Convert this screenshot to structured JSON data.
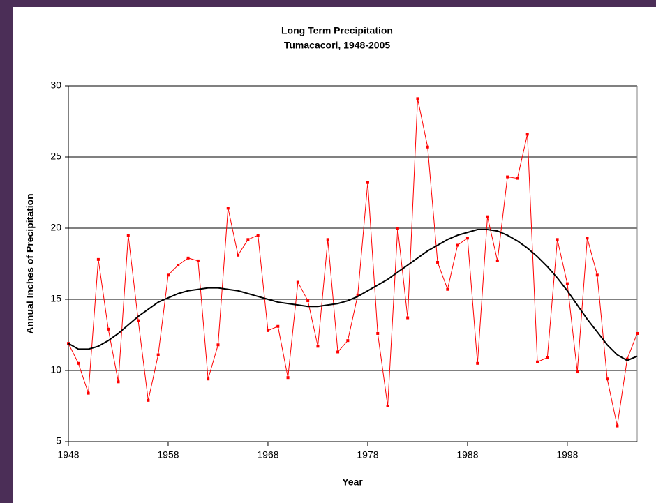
{
  "chart_data": {
    "type": "line",
    "title": "Long Term Precipitation",
    "subtitle": "Tumacacori, 1948-2005",
    "x_label": "Year",
    "y_label": "Annual Inches of Precipitation",
    "x": [
      1948,
      1949,
      1950,
      1951,
      1952,
      1953,
      1954,
      1955,
      1956,
      1957,
      1958,
      1959,
      1960,
      1961,
      1962,
      1963,
      1964,
      1965,
      1966,
      1967,
      1968,
      1969,
      1970,
      1971,
      1972,
      1973,
      1974,
      1975,
      1976,
      1977,
      1978,
      1979,
      1980,
      1981,
      1982,
      1983,
      1984,
      1985,
      1986,
      1987,
      1988,
      1989,
      1990,
      1991,
      1992,
      1993,
      1994,
      1995,
      1996,
      1997,
      1998,
      1999,
      2000,
      2001,
      2002,
      2003,
      2004,
      2005
    ],
    "series": [
      {
        "color": "#ff0000",
        "markers": true,
        "values": [
          11.9,
          10.5,
          8.4,
          17.8,
          12.9,
          9.2,
          19.5,
          13.5,
          7.9,
          11.1,
          16.7,
          17.4,
          17.9,
          17.7,
          9.4,
          11.8,
          21.4,
          18.1,
          19.2,
          19.5,
          12.8,
          13.1,
          9.5,
          16.2,
          14.9,
          11.7,
          19.2,
          11.3,
          12.1,
          15.3,
          23.2,
          12.6,
          7.5,
          20.0,
          13.7,
          29.1,
          25.7,
          17.6,
          15.7,
          18.8,
          19.3,
          10.5,
          20.8,
          17.7,
          23.6,
          23.5,
          26.6,
          10.6,
          10.9,
          19.2,
          16.1,
          9.9,
          19.3,
          16.7,
          9.4,
          6.1,
          10.8,
          12.6
        ]
      },
      {
        "color": "#000000",
        "markers": false,
        "values": [
          11.9,
          11.5,
          11.5,
          11.7,
          12.1,
          12.6,
          13.2,
          13.8,
          14.3,
          14.8,
          15.1,
          15.4,
          15.6,
          15.7,
          15.8,
          15.8,
          15.7,
          15.6,
          15.4,
          15.2,
          15.0,
          14.8,
          14.7,
          14.6,
          14.5,
          14.5,
          14.6,
          14.7,
          14.9,
          15.2,
          15.6,
          16.0,
          16.4,
          16.9,
          17.4,
          17.9,
          18.4,
          18.8,
          19.2,
          19.5,
          19.7,
          19.9,
          19.9,
          19.8,
          19.5,
          19.1,
          18.6,
          18.0,
          17.3,
          16.5,
          15.6,
          14.6,
          13.6,
          12.7,
          11.8,
          11.1,
          10.7,
          11.0
        ]
      }
    ],
    "xlim": [
      1948,
      2005
    ],
    "xticks": [
      1948,
      1958,
      1968,
      1978,
      1988,
      1998
    ],
    "ylim": [
      5,
      30
    ],
    "yticks": [
      5,
      10,
      15,
      20,
      25,
      30
    ],
    "grid": true
  }
}
